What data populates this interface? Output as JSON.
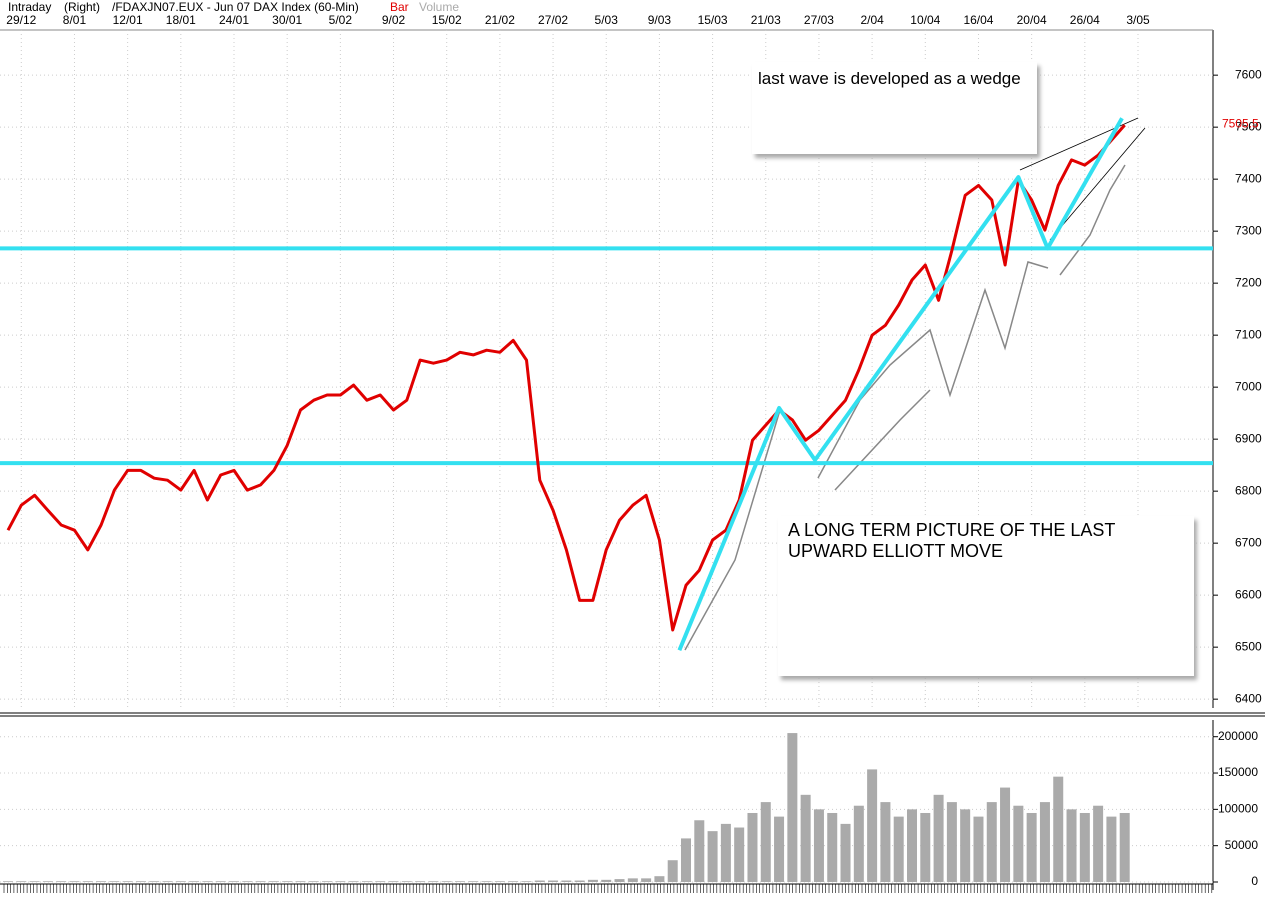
{
  "chart_data": [
    {
      "type": "line",
      "header": [
        "Intraday",
        "(Right)",
        "/FDAXJN07.EUX - Jun 07  DAX Index  (60-Min)",
        "Bar",
        "Volume"
      ],
      "categories": [
        null,
        "29/12",
        null,
        null,
        null,
        "8/01",
        null,
        null,
        null,
        "12/01",
        null,
        null,
        null,
        "18/01",
        null,
        null,
        null,
        "24/01",
        null,
        null,
        null,
        "30/01",
        null,
        null,
        null,
        "5/02",
        null,
        null,
        null,
        "9/02",
        null,
        null,
        null,
        "15/02",
        null,
        null,
        null,
        "21/02",
        null,
        null,
        null,
        "27/02",
        null,
        null,
        null,
        "5/03",
        null,
        null,
        null,
        "9/03",
        null,
        null,
        null,
        "15/03",
        null,
        null,
        null,
        "21/03",
        null,
        null,
        null,
        "27/03",
        null,
        null,
        null,
        "2/04",
        null,
        null,
        null,
        "10/04",
        null,
        null,
        null,
        "16/04",
        null,
        null,
        null,
        "20/04",
        null,
        null,
        null,
        "26/04",
        null,
        null,
        null,
        "3/05"
      ],
      "series": [
        {
          "color": "#e00000",
          "values": [
            6725,
            6773,
            6792,
            6763,
            6735,
            6725,
            6687,
            6735,
            6802,
            6840,
            6840,
            6825,
            6821,
            6802,
            6840,
            6783,
            6831,
            6840,
            6802,
            6812,
            6840,
            6888,
            6956,
            6975,
            6985,
            6985,
            7004,
            6975,
            6985,
            6956,
            6975,
            7052,
            7046,
            7052,
            7067,
            7062,
            7071,
            7067,
            7090,
            7052,
            6821,
            6763,
            6687,
            6590,
            6590,
            6687,
            6744,
            6773,
            6792,
            6706,
            6533,
            6619,
            6648,
            6706,
            6725,
            6783,
            6898,
            6927,
            6956,
            6937,
            6898,
            6917,
            6946,
            6975,
            7033,
            7100,
            7119,
            7158,
            7206,
            7235,
            7167,
            7263,
            7369,
            7388,
            7360,
            7235,
            7398,
            7360,
            7302,
            7388,
            7437,
            7427,
            7446,
            7475,
            7504,
            null
          ]
        }
      ],
      "ylim": [
        6383,
        7683
      ],
      "yticks": [
        6400,
        6500,
        6600,
        6700,
        6800,
        6900,
        7000,
        7100,
        7200,
        7300,
        7400,
        7500,
        7600
      ],
      "last_value": 7505.5,
      "last_value_color": "#e00000",
      "grid": true,
      "hlines": [
        7267,
        6854
      ],
      "hline_color": "#33e0f0",
      "wave": {
        "x": [
          50.5,
          58,
          60.7,
          76,
          78.2,
          83.8
        ],
        "values": [
          6494,
          6960,
          6860,
          7404,
          7267,
          7517
        ],
        "color": "#33e0f0"
      },
      "annotations": [
        "last wave is developed as a wedge",
        "A LONG TERM PICTURE OF THE LAST UPWARD ELLIOTT MOVE"
      ]
    },
    {
      "type": "bar",
      "values": [
        1000,
        1000,
        1000,
        1000,
        1000,
        1000,
        1000,
        1000,
        1000,
        1000,
        1000,
        1000,
        1000,
        1000,
        1000,
        1000,
        1000,
        1000,
        1000,
        1000,
        1000,
        1000,
        1000,
        1000,
        1000,
        1000,
        1000,
        1000,
        1000,
        1000,
        1000,
        1000,
        1000,
        1000,
        1000,
        1000,
        1000,
        1000,
        1000,
        1000,
        2000,
        2000,
        2000,
        2000,
        3000,
        3000,
        4000,
        5000,
        5000,
        8000,
        30000,
        60000,
        85000,
        70000,
        80000,
        75000,
        95000,
        110000,
        90000,
        205000,
        120000,
        100000,
        95000,
        80000,
        105000,
        155000,
        110000,
        90000,
        100000,
        95000,
        120000,
        110000,
        100000,
        90000,
        110000,
        130000,
        105000,
        95000,
        110000,
        145000,
        100000,
        95000,
        105000,
        90000,
        95000,
        null
      ],
      "color": "#aaaaaa",
      "ylim": [
        0,
        223000
      ],
      "yticks": [
        0,
        50000,
        100000,
        150000,
        200000
      ]
    }
  ]
}
